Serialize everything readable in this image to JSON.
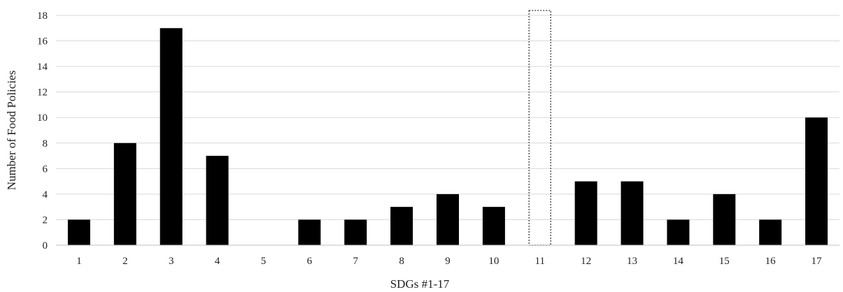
{
  "chart_data": {
    "type": "bar",
    "xlabel": "SDGs #1-17",
    "ylabel": "Number of Food Policies",
    "categories": [
      "1",
      "2",
      "3",
      "4",
      "5",
      "6",
      "7",
      "8",
      "9",
      "10",
      "11",
      "12",
      "13",
      "14",
      "15",
      "16",
      "17"
    ],
    "values": [
      2,
      8,
      17,
      7,
      0,
      2,
      2,
      3,
      4,
      3,
      null,
      5,
      5,
      2,
      4,
      2,
      10
    ],
    "ylim": [
      0,
      18
    ],
    "yticks": [
      "0",
      "2",
      "4",
      "6",
      "8",
      "10",
      "12",
      "14",
      "16",
      "18"
    ],
    "grid": true,
    "legend": "none",
    "bar_color": "#000000",
    "grid_color": "#d9d9d9",
    "highlighted_category": "11",
    "highlight_style": "dotted outline, no fill, spans full axis height"
  }
}
